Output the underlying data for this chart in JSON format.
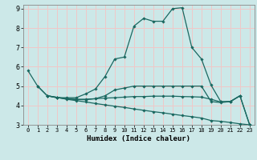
{
  "xlabel": "Humidex (Indice chaleur)",
  "bg_color": "#cce8e8",
  "grid_color": "#f0c8c8",
  "line_color": "#1a6860",
  "xlim": [
    -0.5,
    23.5
  ],
  "ylim": [
    3,
    9.2
  ],
  "yticks": [
    3,
    4,
    5,
    6,
    7,
    8,
    9
  ],
  "xticks": [
    0,
    1,
    2,
    3,
    4,
    5,
    6,
    7,
    8,
    9,
    10,
    11,
    12,
    13,
    14,
    15,
    16,
    17,
    18,
    19,
    20,
    21,
    22,
    23
  ],
  "lines": [
    {
      "x": [
        0,
        1,
        2,
        3,
        4,
        5,
        6,
        7,
        8,
        9,
        10,
        11,
        12,
        13,
        14,
        15,
        16,
        17,
        18,
        19,
        20,
        21,
        22
      ],
      "y": [
        5.8,
        5.0,
        4.5,
        4.4,
        4.4,
        4.4,
        4.6,
        4.85,
        5.5,
        6.4,
        6.5,
        8.1,
        8.5,
        8.35,
        8.35,
        9.0,
        9.05,
        7.0,
        6.4,
        5.05,
        4.2,
        4.2,
        4.5
      ]
    },
    {
      "x": [
        1,
        2,
        3,
        4,
        5,
        6,
        7,
        8,
        9,
        10,
        11,
        12,
        13,
        14,
        15,
        16,
        17,
        18,
        19,
        20,
        21,
        22,
        23
      ],
      "y": [
        5.0,
        4.5,
        4.4,
        4.35,
        4.3,
        4.3,
        4.35,
        4.5,
        4.8,
        4.9,
        5.0,
        5.0,
        5.0,
        5.0,
        5.0,
        5.0,
        5.0,
        5.0,
        4.2,
        4.15,
        4.2,
        4.5,
        3.0
      ]
    },
    {
      "x": [
        2,
        3,
        4,
        5,
        6,
        7,
        8,
        9,
        10,
        11,
        12,
        13,
        14,
        15,
        16,
        17,
        18,
        19,
        20,
        21,
        22,
        23
      ],
      "y": [
        4.5,
        4.42,
        4.35,
        4.32,
        4.32,
        4.35,
        4.38,
        4.4,
        4.43,
        4.46,
        4.46,
        4.48,
        4.48,
        4.48,
        4.46,
        4.45,
        4.43,
        4.32,
        4.18,
        4.2,
        4.5,
        3.0
      ]
    },
    {
      "x": [
        2,
        3,
        4,
        5,
        6,
        7,
        8,
        9,
        10,
        11,
        12,
        13,
        14,
        15,
        16,
        17,
        18,
        19,
        20,
        21,
        22,
        23
      ],
      "y": [
        4.5,
        4.42,
        4.32,
        4.25,
        4.18,
        4.1,
        4.03,
        3.96,
        3.9,
        3.82,
        3.75,
        3.68,
        3.62,
        3.55,
        3.48,
        3.42,
        3.35,
        3.22,
        3.18,
        3.12,
        3.05,
        3.0
      ]
    }
  ]
}
